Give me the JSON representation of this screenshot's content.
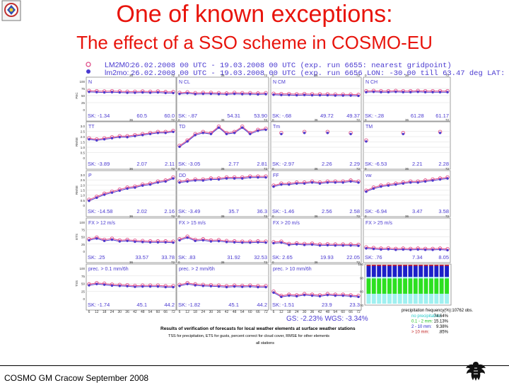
{
  "header": {
    "title": "One of known exceptions:",
    "subtitle": "The effect of a SSO scheme in COSMO-EU"
  },
  "legend": {
    "line1_label": "LM2M0:",
    "line1_text": "26.02.2008 00 UTC - 19.03.2008 00 UTC (exp. run 6655: nearest gridpoint)",
    "line2_label": "lm2mo:",
    "line2_text": "26.02.2008 00 UTC - 19.03.2008 00 UTC (exp. run 6656 LON: -30.00 till 63.47 deg LAT: 27",
    "color_a": "#e0508a",
    "color_b": "#4a3ad0"
  },
  "footer": {
    "text": "COSMO GM Cracow September 2008"
  },
  "chart_data": {
    "type": "line",
    "x_ticks": [
      "6",
      "12",
      "18",
      "24",
      "30",
      "36",
      "42",
      "48",
      "54",
      "60",
      "66",
      "72"
    ],
    "top_x_ticks": [
      "0",
      "36",
      "72"
    ],
    "panels": [
      {
        "label": "N",
        "ylabel": "PEC",
        "yticks": [
          "100",
          "75",
          "50",
          "25",
          "0"
        ],
        "ymin": 0,
        "ymax": 100,
        "values": [
          65,
          64,
          63,
          64,
          63,
          62,
          62,
          63,
          62,
          63,
          61,
          61
        ],
        "stats": [
          "SK: -1.34",
          "60.5",
          "60.0"
        ]
      },
      {
        "label": "N CL",
        "ylabel": "",
        "yticks": [
          "100",
          "75",
          "50",
          "25",
          "0"
        ],
        "ymin": 0,
        "ymax": 100,
        "values": [
          58,
          60,
          57,
          58,
          58,
          57,
          56,
          58,
          57,
          57,
          56,
          57
        ],
        "stats": [
          "SK: -.87",
          "54.31",
          "53.90"
        ]
      },
      {
        "label": "N CM",
        "ylabel": "",
        "yticks": [
          "100",
          "75",
          "50",
          "25",
          "0"
        ],
        "ymin": 0,
        "ymax": 100,
        "values": [
          55,
          54,
          54,
          53,
          54,
          53,
          53,
          53,
          52,
          52,
          52,
          51
        ],
        "stats": [
          "SK: -.68",
          "49.72",
          "49.37"
        ]
      },
      {
        "label": "N CH",
        "ylabel": "",
        "yticks": [
          "100",
          "75",
          "50",
          "25",
          "0"
        ],
        "ymin": 0,
        "ymax": 100,
        "values": [
          64,
          65,
          64,
          64,
          65,
          64,
          64,
          65,
          64,
          64,
          64,
          64
        ],
        "stats": [
          "SK: -.28",
          "61.28",
          "61.17"
        ]
      },
      {
        "label": "TT",
        "ylabel": "RMSE",
        "yticks": [
          "3.0",
          "2.5",
          "2.0",
          "1.5",
          "1.0",
          "0.5",
          "0"
        ],
        "ymin": 0,
        "ymax": 3,
        "values": [
          1.8,
          1.7,
          1.8,
          1.9,
          2.0,
          2.0,
          2.1,
          2.2,
          2.3,
          2.4,
          2.4,
          2.5
        ],
        "stats": [
          "SK: -3.89",
          "2.07",
          "2.11"
        ]
      },
      {
        "label": "TD",
        "ylabel": "",
        "yticks": [
          "3.0",
          "2.5",
          "2.0",
          "1.5",
          "1.0",
          "0.5",
          "0"
        ],
        "ymin": 0,
        "ymax": 3,
        "values": [
          1.1,
          1.6,
          2.2,
          2.4,
          2.3,
          2.9,
          2.3,
          2.4,
          2.9,
          2.3,
          2.6,
          2.7
        ],
        "stats": [
          "SK: -3.05",
          "2.77",
          "2.81"
        ]
      },
      {
        "label": "Tm",
        "ylabel": "",
        "yticks": [
          "3.0",
          "2.5",
          "2.0",
          "1.5",
          "1.0",
          "0.5",
          "0"
        ],
        "ymin": 0,
        "ymax": 3,
        "values": [
          null,
          2.3,
          null,
          null,
          2.4,
          null,
          null,
          2.4,
          null,
          null,
          2.3,
          null
        ],
        "stats": [
          "SK: -2.97",
          "2.26",
          "2.29"
        ]
      },
      {
        "label": "TM",
        "ylabel": "",
        "yticks": [
          "3.0",
          "2.5",
          "2.0",
          "1.5",
          "1.0",
          "0.5",
          "0"
        ],
        "ymin": 0,
        "ymax": 3,
        "values": [
          1.6,
          null,
          null,
          null,
          null,
          2.3,
          null,
          null,
          null,
          null,
          2.4,
          null
        ],
        "stats": [
          "SK: -6.53",
          "2.21",
          "2.28"
        ]
      },
      {
        "label": "P",
        "ylabel": "RMSE",
        "yticks": [
          "3.0",
          "2.5",
          "2.0",
          "1.5",
          "1.0",
          "0.5",
          "0"
        ],
        "ymin": 0,
        "ymax": 3,
        "values": [
          0.5,
          0.8,
          1.1,
          1.3,
          1.5,
          1.7,
          1.8,
          2.0,
          2.1,
          2.3,
          2.4,
          2.7
        ],
        "stats": [
          "SK: -14.58",
          "2.02",
          "2.16"
        ]
      },
      {
        "label": "DD",
        "ylabel": "",
        "yticks": [
          "3.0",
          "2.5",
          "2.0",
          "1.5",
          "1.0",
          "0.5",
          "0"
        ],
        "ymin": 0,
        "ymax": 3,
        "values": [
          2.3,
          2.4,
          2.5,
          2.5,
          2.6,
          2.6,
          2.7,
          2.7,
          2.7,
          2.8,
          2.8,
          2.8
        ],
        "stats": [
          "SK: -3.49",
          "35.7",
          "36.3"
        ]
      },
      {
        "label": "FF",
        "ylabel": "",
        "yticks": [
          "3.0",
          "2.5",
          "2.0",
          "1.5",
          "1.0",
          "0.5",
          "0"
        ],
        "ymin": 0,
        "ymax": 3,
        "values": [
          1.9,
          2.1,
          2.1,
          2.2,
          2.2,
          2.3,
          2.2,
          2.3,
          2.3,
          2.3,
          2.4,
          2.3
        ],
        "stats": [
          "SK: -1.46",
          "2.56",
          "2.58"
        ]
      },
      {
        "label": "vw",
        "ylabel": "",
        "yticks": [
          "3.0",
          "2.5",
          "2.0",
          "1.5",
          "1.0",
          "0.5",
          "0"
        ],
        "ymin": 0,
        "ymax": 3,
        "values": [
          1.4,
          1.7,
          1.9,
          2.0,
          2.1,
          2.2,
          2.3,
          2.3,
          2.4,
          2.5,
          2.6,
          2.7
        ],
        "stats": [
          "SK: -6.94",
          "3.47",
          "3.58"
        ]
      },
      {
        "label": "FX > 12 m/s",
        "ylabel": "ETS",
        "yticks": [
          "100",
          "75",
          "50",
          "25",
          "0"
        ],
        "ymin": 0,
        "ymax": 100,
        "values": [
          40,
          46,
          38,
          42,
          36,
          38,
          35,
          34,
          33,
          33,
          33,
          32
        ],
        "stats": [
          "SK: .25",
          "33.57",
          "33.78"
        ]
      },
      {
        "label": "FX > 15 m/s",
        "ylabel": "",
        "yticks": [
          "100",
          "75",
          "50",
          "25",
          "0"
        ],
        "ymin": 0,
        "ymax": 100,
        "values": [
          40,
          49,
          38,
          40,
          36,
          37,
          34,
          33,
          32,
          32,
          33,
          32
        ],
        "stats": [
          "SK: .83",
          "31.92",
          "32.53"
        ]
      },
      {
        "label": "FX > 20 m/s",
        "ylabel": "",
        "yticks": [
          "100",
          "75",
          "50",
          "25",
          "0"
        ],
        "ymin": 0,
        "ymax": 100,
        "values": [
          30,
          32,
          24,
          26,
          24,
          25,
          22,
          23,
          22,
          22,
          22,
          21
        ],
        "stats": [
          "SK: 2.65",
          "19.93",
          "22.05"
        ]
      },
      {
        "label": "FX > 25 m/s",
        "ylabel": "",
        "yticks": [
          "100",
          "75",
          "50",
          "25",
          "0"
        ],
        "ymin": 0,
        "ymax": 100,
        "values": [
          12,
          10,
          8,
          9,
          7,
          8,
          7,
          8,
          7,
          7,
          8,
          6
        ],
        "stats": [
          "SK: .76",
          "7.34",
          "8.05"
        ]
      },
      {
        "label": "prec. > 0.1 mm/6h",
        "ylabel": "TSS",
        "yticks": [
          "100",
          "75",
          "50",
          "25",
          "0"
        ],
        "ymin": 0,
        "ymax": 100,
        "values": [
          46,
          50,
          48,
          45,
          44,
          43,
          41,
          42,
          42,
          42,
          40,
          40
        ],
        "stats": [
          "SK: -1.74",
          "45.1",
          "44.2"
        ]
      },
      {
        "label": "prec. > 2 mm/6h",
        "ylabel": "",
        "yticks": [
          "100",
          "75",
          "50",
          "25",
          "0"
        ],
        "ymin": 0,
        "ymax": 100,
        "values": [
          44,
          50,
          46,
          44,
          43,
          42,
          40,
          42,
          41,
          42,
          40,
          40
        ],
        "stats": [
          "SK: -1.82",
          "45.1",
          "44.2"
        ]
      },
      {
        "label": "prec. > 10 mm/6h",
        "ylabel": "",
        "yticks": [
          "100",
          "75",
          "50",
          "25",
          "0"
        ],
        "ymin": 0,
        "ymax": 100,
        "values": [
          22,
          8,
          12,
          10,
          14,
          12,
          10,
          14,
          12,
          12,
          10,
          8
        ],
        "stats": [
          "SK: -1.51",
          "23.9",
          "23.3"
        ]
      }
    ],
    "freq_panel": {
      "yticks": [
        "100",
        "90",
        "80",
        "70"
      ],
      "bars": 16,
      "colors": {
        "top_white": "#ffffff",
        "blue": "#1c20c8",
        "green": "#2ce020",
        "cyan": "#a0f0f0",
        "red": "#e02020"
      },
      "legend": {
        "title": "precipitation frequency(%):10762 obs.",
        "rows": [
          {
            "label": "no precipitation:",
            "value": "74.64%",
            "color": "#20c8c8"
          },
          {
            "label": "0.1 - 2 mm:",
            "value": "15.13%",
            "color": "#20c020"
          },
          {
            "label": "2 - 10 mm:",
            "value": "9.38%",
            "color": "#2020c8"
          },
          {
            "label": "> 10 mm:",
            "value": ".85%",
            "color": "#c02020"
          }
        ]
      }
    },
    "gs_text": "GS: -2.23%  WGS: -3.34%",
    "caption": {
      "line1": "Results of verification of forecasts for local weather elements at surface weather stations",
      "line2": "TSS      for precipitation, ETS for gusts, percent correct for cloud cover, RMSE for other elements",
      "line3": "all stations"
    }
  }
}
